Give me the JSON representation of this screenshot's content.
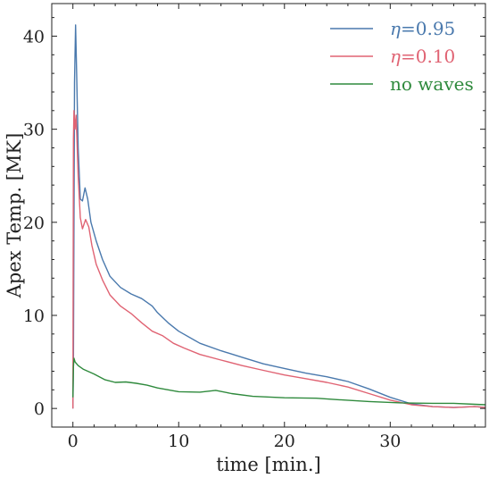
{
  "chart_data": {
    "type": "line",
    "title": "",
    "xlabel": "time [min.]",
    "ylabel": "Apex Temp. [MK]",
    "xlim": [
      -2,
      39
    ],
    "ylim": [
      -2,
      43.5
    ],
    "xticks": [
      0,
      10,
      20,
      30
    ],
    "xtick_labels": [
      "0",
      "10",
      "20",
      "30"
    ],
    "yticks": [
      0,
      10,
      20,
      30,
      40
    ],
    "ytick_labels": [
      "0",
      "10",
      "20",
      "30",
      "40"
    ],
    "grid": false,
    "legend_position": "top-right",
    "series": [
      {
        "name": "η=0.95",
        "legend_prefix": "η",
        "legend_suffix": "=0.95",
        "color": "#4a79ad",
        "x": [
          0,
          0.05,
          0.15,
          0.25,
          0.35,
          0.5,
          0.7,
          0.9,
          1.15,
          1.4,
          1.7,
          2.2,
          2.8,
          3.5,
          4.5,
          5.5,
          6.5,
          7.5,
          8,
          9,
          10,
          12,
          14,
          16,
          18,
          20,
          22,
          24,
          26,
          28,
          30,
          32,
          34,
          36,
          38,
          39
        ],
        "y": [
          0,
          5,
          35,
          41.2,
          36,
          28,
          22.5,
          22.3,
          23.7,
          22.5,
          20,
          18,
          16,
          14.2,
          13,
          12.3,
          11.8,
          11,
          10.3,
          9.2,
          8.3,
          7,
          6.2,
          5.5,
          4.8,
          4.3,
          3.8,
          3.4,
          2.9,
          2.1,
          1.2,
          0.5,
          0.2,
          0.1,
          0.2,
          0.1
        ]
      },
      {
        "name": "η=0.10",
        "legend_prefix": "η",
        "legend_suffix": "=0.10",
        "color": "#e06373",
        "x": [
          0,
          0.05,
          0.1,
          0.2,
          0.3,
          0.5,
          0.7,
          0.9,
          1.2,
          1.5,
          1.8,
          2.2,
          2.8,
          3.5,
          4.5,
          5.5,
          6.5,
          7.5,
          8.5,
          9.5,
          10.5,
          12,
          14,
          16,
          18,
          20,
          22,
          24,
          26,
          28,
          30,
          32,
          34,
          36,
          38,
          39
        ],
        "y": [
          0,
          29,
          32,
          30,
          31.5,
          25,
          20.5,
          19.3,
          20.3,
          19.5,
          17.5,
          15.5,
          13.8,
          12.2,
          11,
          10.2,
          9.2,
          8.3,
          7.8,
          7,
          6.5,
          5.8,
          5.2,
          4.6,
          4.1,
          3.6,
          3.2,
          2.8,
          2.3,
          1.6,
          0.9,
          0.4,
          0.2,
          0.1,
          0.2,
          0.1
        ]
      },
      {
        "name": "no waves",
        "color": "#2f8a3d",
        "x": [
          0,
          0.05,
          0.1,
          0.2,
          0.5,
          1,
          2,
          3,
          4,
          5,
          6,
          7,
          8,
          9,
          10,
          12,
          13.5,
          15,
          17,
          20,
          23,
          25,
          28,
          31,
          34,
          36,
          38,
          39
        ],
        "y": [
          1.2,
          4.5,
          5.4,
          5,
          4.6,
          4.2,
          3.7,
          3.1,
          2.8,
          2.85,
          2.7,
          2.5,
          2.2,
          2,
          1.8,
          1.75,
          1.95,
          1.6,
          1.3,
          1.15,
          1.1,
          0.95,
          0.75,
          0.6,
          0.55,
          0.55,
          0.45,
          0.4
        ]
      }
    ]
  }
}
